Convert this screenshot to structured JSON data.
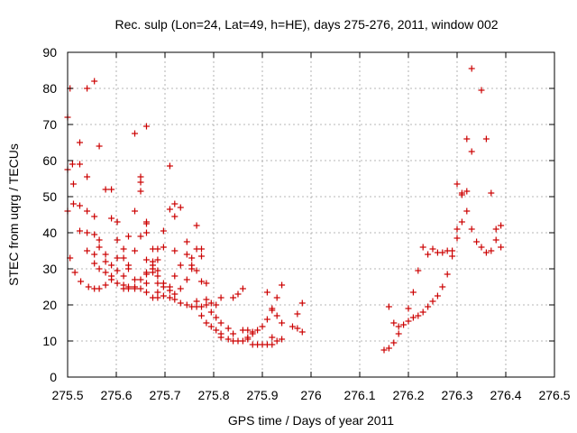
{
  "chart_data": {
    "type": "scatter",
    "title": "Rec. sulp (Lon=24, Lat=49, h=HE), days 275-276, 2011, window 002",
    "xlabel": "GPS time / Days of year 2011",
    "ylabel": "STEC from uqrg / TECUs",
    "xlim": [
      275.5,
      276.5
    ],
    "ylim": [
      0,
      90
    ],
    "xticks": [
      275.5,
      275.6,
      275.7,
      275.8,
      275.9,
      276,
      276.1,
      276.2,
      276.3,
      276.4,
      276.5
    ],
    "xtick_labels": [
      "275.5",
      "275.6",
      "275.7",
      "275.8",
      "275.9",
      "276",
      "276.1",
      "276.2",
      "276.3",
      "276.4",
      "276.5"
    ],
    "yticks": [
      0,
      10,
      20,
      30,
      40,
      50,
      60,
      70,
      80,
      90
    ],
    "ytick_labels": [
      "0",
      "10",
      "20",
      "30",
      "40",
      "50",
      "60",
      "70",
      "80",
      "90"
    ],
    "grid": true,
    "marker": "+",
    "color": "#cc0000",
    "points": [
      [
        275.5,
        57.5
      ],
      [
        275.5,
        72
      ],
      [
        275.5,
        46
      ],
      [
        275.505,
        80
      ],
      [
        275.505,
        33
      ],
      [
        275.51,
        59
      ],
      [
        275.512,
        53.5
      ],
      [
        275.512,
        48
      ],
      [
        275.515,
        29
      ],
      [
        275.525,
        59
      ],
      [
        275.525,
        65
      ],
      [
        275.525,
        47.5
      ],
      [
        275.525,
        40.5
      ],
      [
        275.527,
        26.5
      ],
      [
        275.54,
        80
      ],
      [
        275.54,
        55.5
      ],
      [
        275.54,
        46
      ],
      [
        275.54,
        40
      ],
      [
        275.54,
        35
      ],
      [
        275.543,
        25
      ],
      [
        275.555,
        82
      ],
      [
        275.555,
        44.5
      ],
      [
        275.555,
        39.5
      ],
      [
        275.555,
        34
      ],
      [
        275.555,
        31.5
      ],
      [
        275.555,
        24.5
      ],
      [
        275.565,
        64
      ],
      [
        275.565,
        38
      ],
      [
        275.565,
        36
      ],
      [
        275.565,
        30
      ],
      [
        275.565,
        24.5
      ],
      [
        275.578,
        52
      ],
      [
        275.578,
        34
      ],
      [
        275.578,
        32
      ],
      [
        275.578,
        29
      ],
      [
        275.578,
        25.5
      ],
      [
        275.59,
        52
      ],
      [
        275.59,
        44
      ],
      [
        275.59,
        31
      ],
      [
        275.59,
        28
      ],
      [
        275.59,
        27
      ],
      [
        275.602,
        43
      ],
      [
        275.602,
        38
      ],
      [
        275.602,
        33
      ],
      [
        275.602,
        29.5
      ],
      [
        275.602,
        26
      ],
      [
        275.615,
        35.5
      ],
      [
        275.615,
        33
      ],
      [
        275.615,
        28
      ],
      [
        275.615,
        25.5
      ],
      [
        275.615,
        24.5
      ],
      [
        275.625,
        39
      ],
      [
        275.625,
        31
      ],
      [
        275.625,
        30
      ],
      [
        275.625,
        25
      ],
      [
        275.625,
        24.5
      ],
      [
        275.638,
        67.5
      ],
      [
        275.638,
        46
      ],
      [
        275.638,
        35
      ],
      [
        275.638,
        27
      ],
      [
        275.638,
        25
      ],
      [
        275.638,
        24.5
      ],
      [
        275.65,
        55.5
      ],
      [
        275.65,
        54
      ],
      [
        275.65,
        51.5
      ],
      [
        275.65,
        39
      ],
      [
        275.65,
        27
      ],
      [
        275.65,
        24.5
      ],
      [
        275.662,
        69.5
      ],
      [
        275.662,
        43
      ],
      [
        275.662,
        42.5
      ],
      [
        275.662,
        40
      ],
      [
        275.662,
        32.5
      ],
      [
        275.662,
        29
      ],
      [
        275.662,
        28.5
      ],
      [
        275.662,
        26
      ],
      [
        275.662,
        23.5
      ],
      [
        275.675,
        35.5
      ],
      [
        275.675,
        32
      ],
      [
        275.675,
        31
      ],
      [
        275.675,
        30
      ],
      [
        275.675,
        29
      ],
      [
        275.675,
        22
      ],
      [
        275.685,
        35.5
      ],
      [
        275.685,
        32.5
      ],
      [
        275.685,
        29.5
      ],
      [
        275.685,
        28
      ],
      [
        275.685,
        26
      ],
      [
        275.685,
        23.5
      ],
      [
        275.685,
        22
      ],
      [
        275.697,
        40.5
      ],
      [
        275.697,
        36
      ],
      [
        275.697,
        26
      ],
      [
        275.697,
        25
      ],
      [
        275.697,
        22.5
      ],
      [
        275.71,
        58.5
      ],
      [
        275.71,
        46.5
      ],
      [
        275.71,
        25
      ],
      [
        275.71,
        24
      ],
      [
        275.71,
        22
      ],
      [
        275.72,
        48
      ],
      [
        275.72,
        44.5
      ],
      [
        275.72,
        35
      ],
      [
        275.72,
        28
      ],
      [
        275.72,
        23
      ],
      [
        275.72,
        21.5
      ],
      [
        275.732,
        47
      ],
      [
        275.732,
        31
      ],
      [
        275.732,
        24.5
      ],
      [
        275.732,
        20.5
      ],
      [
        275.745,
        37.5
      ],
      [
        275.745,
        34
      ],
      [
        275.745,
        27
      ],
      [
        275.745,
        20
      ],
      [
        275.755,
        33
      ],
      [
        275.755,
        31
      ],
      [
        275.755,
        30
      ],
      [
        275.755,
        19.5
      ],
      [
        275.765,
        42
      ],
      [
        275.765,
        35.5
      ],
      [
        275.765,
        29.5
      ],
      [
        275.765,
        21
      ],
      [
        275.765,
        19.5
      ],
      [
        275.775,
        35.5
      ],
      [
        275.775,
        33.5
      ],
      [
        275.775,
        26.5
      ],
      [
        275.775,
        19.5
      ],
      [
        275.775,
        17
      ],
      [
        275.785,
        26
      ],
      [
        275.785,
        21.5
      ],
      [
        275.785,
        20
      ],
      [
        275.785,
        15
      ],
      [
        275.795,
        20.5
      ],
      [
        275.795,
        18
      ],
      [
        275.795,
        14
      ],
      [
        275.805,
        20
      ],
      [
        275.805,
        16.5
      ],
      [
        275.805,
        13
      ],
      [
        275.815,
        22
      ],
      [
        275.815,
        15
      ],
      [
        275.815,
        12
      ],
      [
        275.815,
        11
      ],
      [
        275.83,
        13.5
      ],
      [
        275.83,
        10.5
      ],
      [
        275.84,
        22
      ],
      [
        275.84,
        12
      ],
      [
        275.84,
        10
      ],
      [
        275.85,
        23
      ],
      [
        275.85,
        10
      ],
      [
        275.86,
        24.5
      ],
      [
        275.86,
        13
      ],
      [
        275.86,
        10
      ],
      [
        275.87,
        13
      ],
      [
        275.87,
        11
      ],
      [
        275.87,
        10.5
      ],
      [
        275.88,
        12
      ],
      [
        275.88,
        12.5
      ],
      [
        275.88,
        9
      ],
      [
        275.89,
        13
      ],
      [
        275.89,
        9
      ],
      [
        275.9,
        14
      ],
      [
        275.9,
        9
      ],
      [
        275.91,
        23.5
      ],
      [
        275.91,
        16
      ],
      [
        275.91,
        9
      ],
      [
        275.92,
        19
      ],
      [
        275.92,
        18.5
      ],
      [
        275.92,
        11
      ],
      [
        275.92,
        9
      ],
      [
        275.93,
        22
      ],
      [
        275.93,
        17
      ],
      [
        275.93,
        10
      ],
      [
        275.94,
        25.5
      ],
      [
        275.94,
        15
      ],
      [
        275.94,
        10.5
      ],
      [
        275.962,
        14
      ],
      [
        275.972,
        17.5
      ],
      [
        275.972,
        13.5
      ],
      [
        275.982,
        20.5
      ],
      [
        275.982,
        12.5
      ],
      [
        276.15,
        7.5
      ],
      [
        276.16,
        19.5
      ],
      [
        276.16,
        8
      ],
      [
        276.17,
        15
      ],
      [
        276.17,
        9.5
      ],
      [
        276.18,
        14
      ],
      [
        276.18,
        12
      ],
      [
        276.19,
        14.5
      ],
      [
        276.2,
        19
      ],
      [
        276.2,
        15.5
      ],
      [
        276.21,
        23.5
      ],
      [
        276.21,
        16.5
      ],
      [
        276.22,
        29.5
      ],
      [
        276.22,
        17
      ],
      [
        276.23,
        36
      ],
      [
        276.23,
        18
      ],
      [
        276.24,
        34
      ],
      [
        276.24,
        19.5
      ],
      [
        276.25,
        35.5
      ],
      [
        276.25,
        21
      ],
      [
        276.26,
        34.5
      ],
      [
        276.26,
        22.5
      ],
      [
        276.27,
        34.5
      ],
      [
        276.27,
        25
      ],
      [
        276.28,
        35
      ],
      [
        276.28,
        28.5
      ],
      [
        276.29,
        35
      ],
      [
        276.29,
        33.5
      ],
      [
        276.3,
        53.5
      ],
      [
        276.3,
        41
      ],
      [
        276.3,
        38.5
      ],
      [
        276.31,
        51
      ],
      [
        276.31,
        50.5
      ],
      [
        276.31,
        43
      ],
      [
        276.32,
        66
      ],
      [
        276.32,
        51.5
      ],
      [
        276.32,
        46
      ],
      [
        276.33,
        85.5
      ],
      [
        276.33,
        62.5
      ],
      [
        276.33,
        41
      ],
      [
        276.34,
        37.5
      ],
      [
        276.35,
        79.5
      ],
      [
        276.35,
        36
      ],
      [
        276.36,
        66
      ],
      [
        276.36,
        34.5
      ],
      [
        276.37,
        51
      ],
      [
        276.37,
        35
      ],
      [
        276.38,
        41
      ],
      [
        276.38,
        38
      ],
      [
        276.39,
        42
      ],
      [
        276.39,
        36
      ]
    ]
  }
}
